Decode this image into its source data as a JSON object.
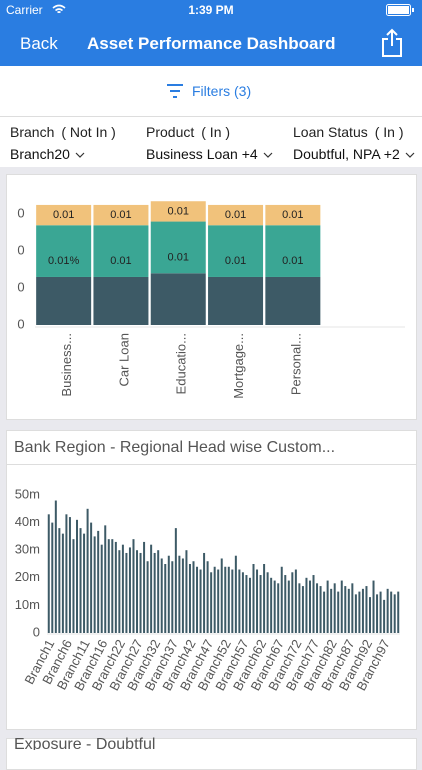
{
  "status_bar": {
    "carrier": "Carrier",
    "time": "1:39 PM"
  },
  "nav_bar": {
    "back": "Back",
    "title": "Asset Performance Dashboard"
  },
  "filters_bar": {
    "label": "Filters (3)"
  },
  "filters": [
    {
      "label": "Branch",
      "qualifier": "( Not In )",
      "value": "Branch20"
    },
    {
      "label": "Product",
      "qualifier": "( In )",
      "value": "Business Loan +4"
    },
    {
      "label": "Loan Status",
      "qualifier": "( In )",
      "value": "Doubtful, NPA +2"
    }
  ],
  "chart_data": [
    {
      "type": "stacked_bar",
      "categories": [
        "Business...",
        "Car Loan",
        "Educatio...",
        "Mortgage...",
        "Personal..."
      ],
      "ylim": [
        0,
        0.036
      ],
      "yticks": [
        {
          "value": 0,
          "label": "0"
        },
        {
          "value": 0.01,
          "label": "0"
        },
        {
          "value": 0.02,
          "label": "0"
        },
        {
          "value": 0.03,
          "label": "0"
        }
      ],
      "grid": false,
      "series": [
        {
          "color": "#3d5a66",
          "values": [
            0.013,
            0.013,
            0.014,
            0.013,
            0.013
          ]
        },
        {
          "color": "#3aa694",
          "values": [
            0.014,
            0.014,
            0.014,
            0.014,
            0.014
          ],
          "value_labels": [
            "0.01%",
            "0.01",
            "0.01",
            "0.01",
            "0.01"
          ]
        },
        {
          "color": "#f1c27b",
          "values": [
            0.0055,
            0.0055,
            0.0055,
            0.0055,
            0.0055
          ],
          "value_labels": [
            "0.01",
            "0.01",
            "0.01",
            "0.01",
            "0.01"
          ]
        }
      ]
    },
    {
      "type": "bar",
      "title": "Bank Region - Regional Head wise Custom...",
      "color": "#3d5a66",
      "ylim": [
        0,
        50000000
      ],
      "yticks": [
        {
          "value": 0,
          "label": "0"
        },
        {
          "value": 10000000,
          "label": "10m"
        },
        {
          "value": 20000000,
          "label": "20m"
        },
        {
          "value": 30000000,
          "label": "30m"
        },
        {
          "value": 40000000,
          "label": "40m"
        },
        {
          "value": 50000000,
          "label": "50m"
        }
      ],
      "grid": false,
      "categories": [
        "Branch1",
        null,
        null,
        null,
        null,
        "Branch6",
        null,
        null,
        null,
        null,
        "Branch11",
        null,
        null,
        null,
        null,
        "Branch16",
        null,
        null,
        null,
        null,
        "Branch22",
        null,
        null,
        null,
        null,
        "Branch27",
        null,
        null,
        null,
        null,
        "Branch32",
        null,
        null,
        null,
        null,
        "Branch37",
        null,
        null,
        null,
        null,
        "Branch42",
        null,
        null,
        null,
        null,
        "Branch47",
        null,
        null,
        null,
        null,
        "Branch52",
        null,
        null,
        null,
        null,
        "Branch57",
        null,
        null,
        null,
        null,
        "Branch62",
        null,
        null,
        null,
        null,
        "Branch67",
        null,
        null,
        null,
        null,
        "Branch72",
        null,
        null,
        null,
        null,
        "Branch77",
        null,
        null,
        null,
        null,
        "Branch82",
        null,
        null,
        null,
        null,
        "Branch87",
        null,
        null,
        null,
        null,
        "Branch92",
        null,
        null,
        null,
        null,
        "Branch97",
        null,
        null,
        null,
        null
      ],
      "values": [
        43000000,
        40000000,
        48000000,
        38000000,
        36000000,
        43000000,
        42000000,
        34000000,
        41000000,
        38000000,
        36000000,
        45000000,
        40000000,
        35000000,
        37000000,
        32000000,
        39000000,
        34000000,
        34000000,
        33000000,
        30000000,
        32000000,
        29000000,
        31000000,
        34000000,
        30000000,
        29000000,
        33000000,
        26000000,
        32000000,
        29000000,
        30000000,
        27000000,
        25000000,
        28000000,
        26000000,
        38000000,
        28000000,
        27000000,
        30000000,
        25000000,
        26000000,
        24000000,
        23000000,
        29000000,
        26000000,
        22000000,
        24000000,
        23000000,
        27000000,
        24000000,
        24000000,
        23000000,
        28000000,
        23000000,
        22000000,
        21000000,
        20000000,
        25000000,
        23000000,
        21000000,
        25000000,
        22000000,
        20000000,
        19000000,
        18000000,
        24000000,
        21000000,
        19000000,
        22000000,
        23000000,
        18000000,
        17000000,
        20000000,
        19000000,
        21000000,
        18000000,
        17000000,
        15000000,
        19000000,
        16000000,
        18000000,
        15000000,
        19000000,
        17000000,
        16000000,
        18000000,
        14000000,
        15000000,
        16000000,
        17000000,
        13000000,
        19000000,
        14000000,
        15000000,
        12000000,
        16000000,
        15000000,
        14000000,
        15000000
      ]
    },
    {
      "type": "bar",
      "title": "Exposure - Doubtful"
    }
  ]
}
